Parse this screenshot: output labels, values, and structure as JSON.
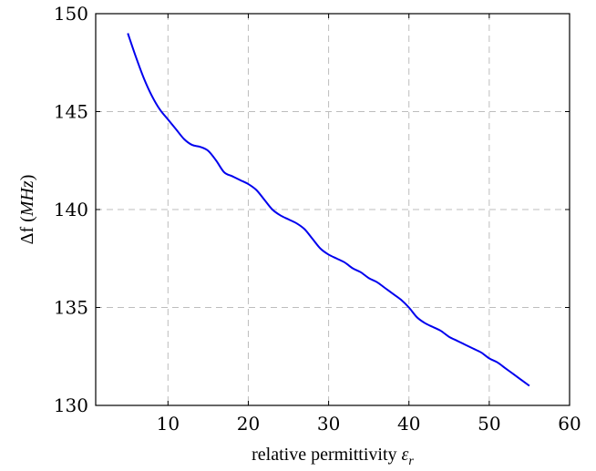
{
  "chart_data": {
    "type": "line",
    "title": "",
    "xlabel": "relative permittivity ε_r",
    "ylabel": "Δf (MHz)",
    "xlim": [
      1,
      60
    ],
    "ylim": [
      130,
      150
    ],
    "xticks": [
      10,
      20,
      30,
      40,
      50,
      60
    ],
    "yticks": [
      130,
      135,
      140,
      145,
      150
    ],
    "grid": true,
    "legend": "none",
    "series": [
      {
        "color": "#0000ee",
        "x": [
          5,
          6,
          7,
          8,
          9,
          10,
          11,
          12,
          13,
          14,
          15,
          16,
          17,
          18,
          19,
          20,
          21,
          22,
          23,
          24,
          25,
          26,
          27,
          28,
          29,
          30,
          31,
          32,
          33,
          34,
          35,
          36,
          37,
          38,
          39,
          40,
          41,
          42,
          43,
          44,
          45,
          46,
          47,
          48,
          49,
          50,
          51,
          52,
          53,
          54,
          55
        ],
        "y": [
          149.0,
          147.8,
          146.7,
          145.8,
          145.1,
          144.6,
          144.1,
          143.6,
          143.3,
          143.2,
          143.0,
          142.5,
          141.9,
          141.7,
          141.5,
          141.3,
          141.0,
          140.5,
          140.0,
          139.7,
          139.5,
          139.3,
          139.0,
          138.5,
          138.0,
          137.7,
          137.5,
          137.3,
          137.0,
          136.8,
          136.5,
          136.3,
          136.0,
          135.7,
          135.4,
          135.0,
          134.5,
          134.2,
          134.0,
          133.8,
          133.5,
          133.3,
          133.1,
          132.9,
          132.7,
          132.4,
          132.2,
          131.9,
          131.6,
          131.3,
          131.0
        ]
      }
    ]
  }
}
